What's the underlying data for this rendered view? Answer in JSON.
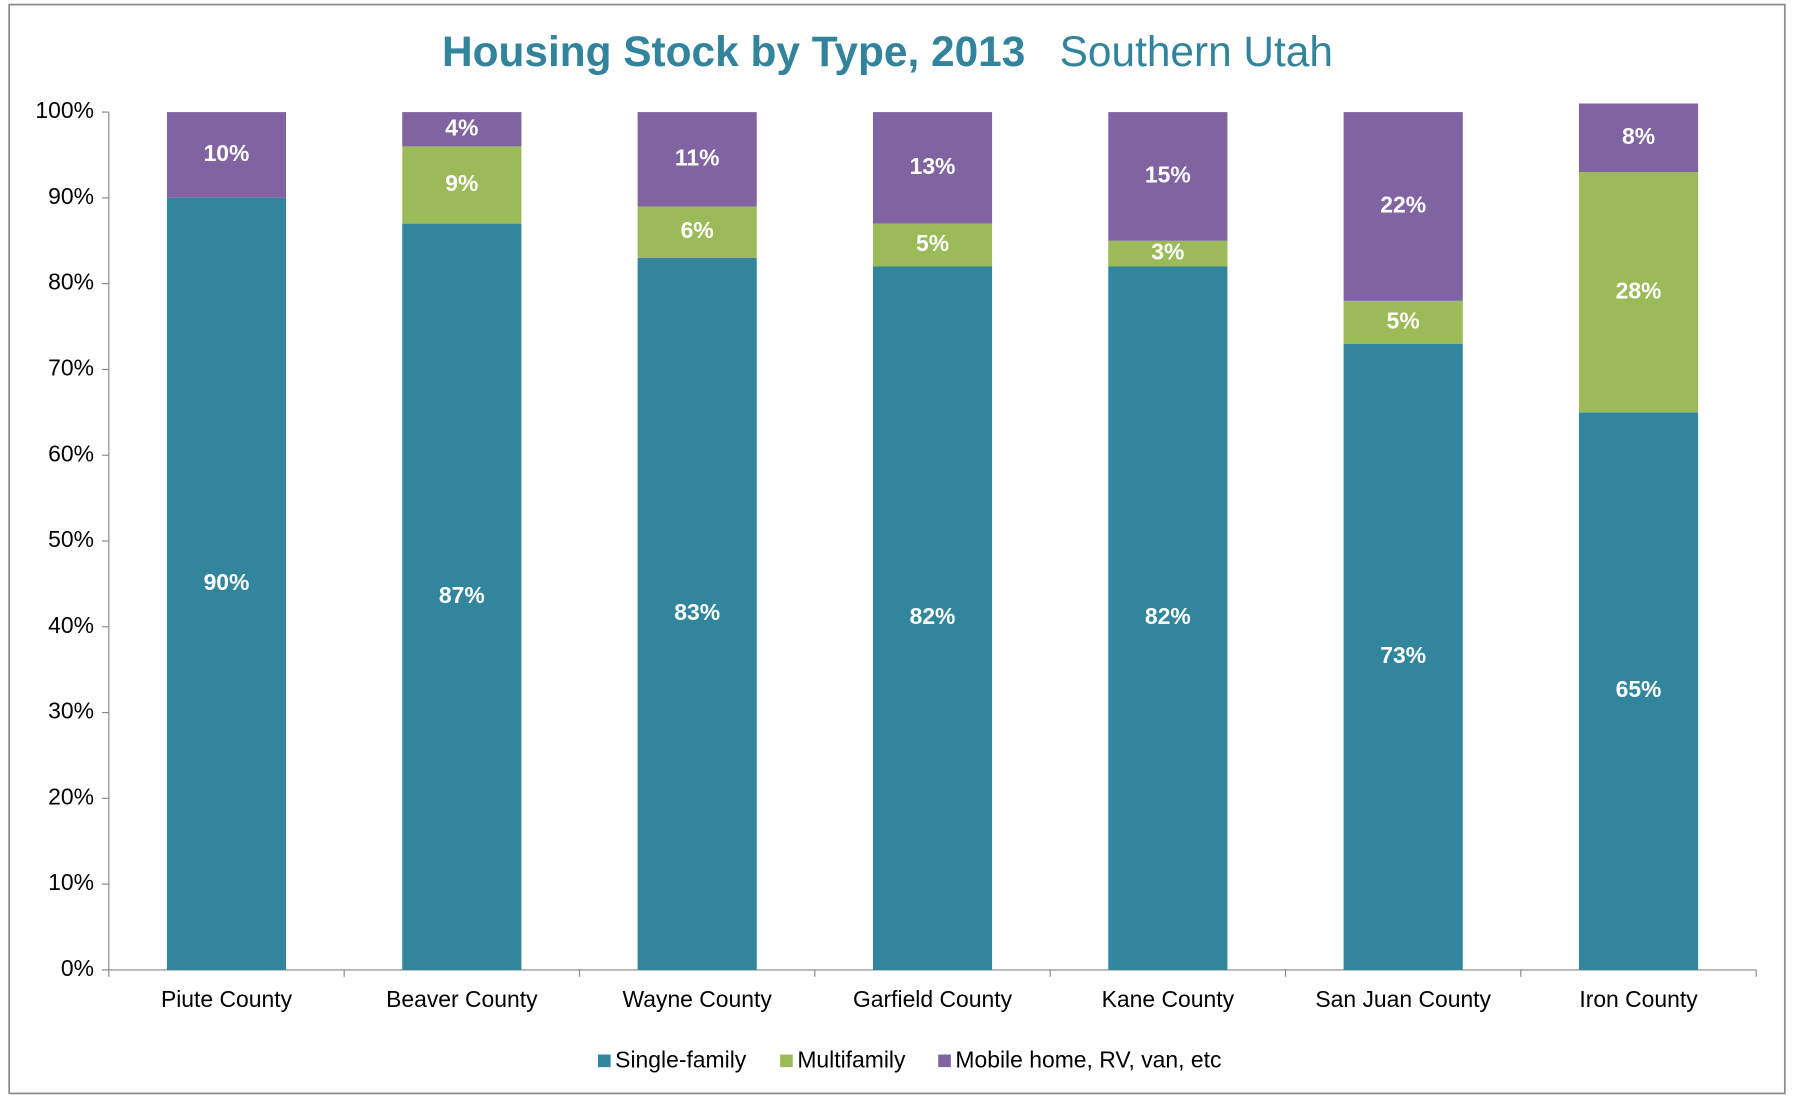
{
  "chart_data": {
    "type": "stacked_bar",
    "title": "Housing Stock by Type, 2013",
    "subtitle": "Southern Utah",
    "categories": [
      "Piute County",
      "Beaver County",
      "Wayne County",
      "Garfield County",
      "Kane County",
      "San Juan County",
      "Iron County"
    ],
    "series": [
      {
        "name": "Single-family",
        "color": "#31859c",
        "values": [
          90,
          87,
          83,
          82,
          82,
          73,
          65
        ],
        "value_labels": [
          "90%",
          "87%",
          "83%",
          "82%",
          "82%",
          "73%",
          "65%"
        ]
      },
      {
        "name": "Multifamily",
        "color": "#9bbb59",
        "values": [
          null,
          9,
          6,
          5,
          3,
          5,
          28
        ],
        "value_labels": [
          null,
          "9%",
          "6%",
          "5%",
          "3%",
          "5%",
          "28%"
        ]
      },
      {
        "name": "Mobile home, RV, van, etc",
        "color": "#8064a2",
        "values": [
          10,
          4,
          11,
          13,
          15,
          22,
          8
        ],
        "value_labels": [
          "10%",
          "4%",
          "11%",
          "13%",
          "15%",
          "22%",
          "8%"
        ]
      }
    ],
    "ylim": [
      0,
      100
    ],
    "yticks": [
      {
        "value": 0,
        "label": "0%"
      },
      {
        "value": 10,
        "label": "10%"
      },
      {
        "value": 20,
        "label": "20%"
      },
      {
        "value": 30,
        "label": "30%"
      },
      {
        "value": 40,
        "label": "40%"
      },
      {
        "value": 50,
        "label": "50%"
      },
      {
        "value": 60,
        "label": "60%"
      },
      {
        "value": 70,
        "label": "70%"
      },
      {
        "value": 80,
        "label": "80%"
      },
      {
        "value": 90,
        "label": "90%"
      },
      {
        "value": 100,
        "label": "100%"
      }
    ],
    "legend": "bottom"
  }
}
